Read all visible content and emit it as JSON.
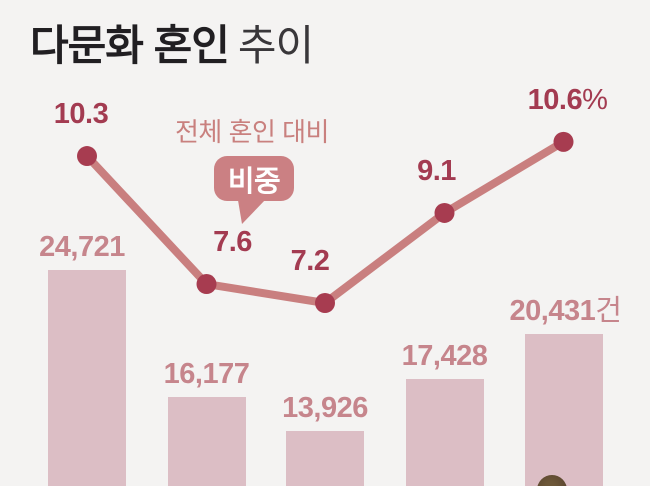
{
  "title": {
    "main": "다문화 혼인",
    "sub": "추이"
  },
  "annotation": {
    "caption": "전체 혼인 대비",
    "bubble_label": "비중"
  },
  "colors": {
    "background": "#f4f3f2",
    "title_text": "#211f22",
    "bar_fill": "#dcbec5",
    "bar_label": "#c6858c",
    "line": "#c97f7f",
    "dot": "#a73c50",
    "value_label": "#a33b51",
    "annotation_text": "#c9807e",
    "bubble_bg": "#cb8083",
    "bubble_text": "#ffffff",
    "figure_head": "#5a452f"
  },
  "chart_data": {
    "type": "combo",
    "title": "다문화 혼인 추이",
    "grid": false,
    "legend_position": "none",
    "series": [
      {
        "name": "전체 혼인 대비 비중",
        "type": "line",
        "unit": "%",
        "values": [
          10.3,
          7.6,
          7.2,
          9.1,
          10.6
        ],
        "labels": [
          "10.3",
          "7.6",
          "7.2",
          "9.1",
          "10.6"
        ],
        "last_label_suffix": "%"
      },
      {
        "name": "다문화 혼인 건수",
        "type": "bar",
        "unit": "건",
        "values": [
          24721,
          16177,
          13926,
          17428,
          20431
        ],
        "labels": [
          "24,721",
          "16,177",
          "13,926",
          "17,428",
          "20,431"
        ],
        "last_label_suffix": "건"
      }
    ]
  }
}
